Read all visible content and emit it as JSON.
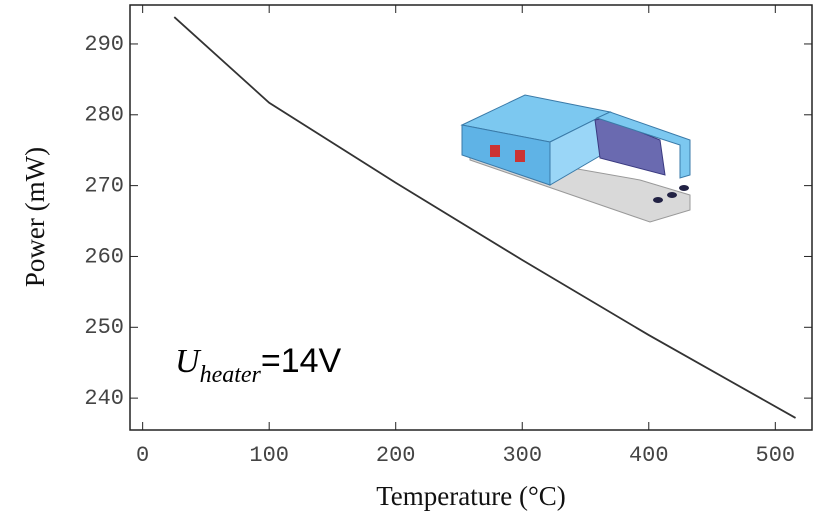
{
  "chart_data": {
    "type": "line",
    "x_label": "Temperature (°C)",
    "y_label": "Power (mW)",
    "annotation": {
      "symbol": "U",
      "subscript": "heater",
      "text": "=14V"
    },
    "x": [
      25,
      100,
      200,
      300,
      400,
      516
    ],
    "series": [
      {
        "color": "#333333",
        "values": [
          293.8,
          281.7,
          270.4,
          259.5,
          248.9,
          237.2
        ]
      }
    ],
    "xlim": [
      -10,
      529
    ],
    "xticks": [
      0,
      100,
      200,
      300,
      400,
      500
    ],
    "ylim": [
      235.5,
      295.5
    ],
    "yticks": [
      240,
      250,
      260,
      270,
      280,
      290
    ]
  }
}
